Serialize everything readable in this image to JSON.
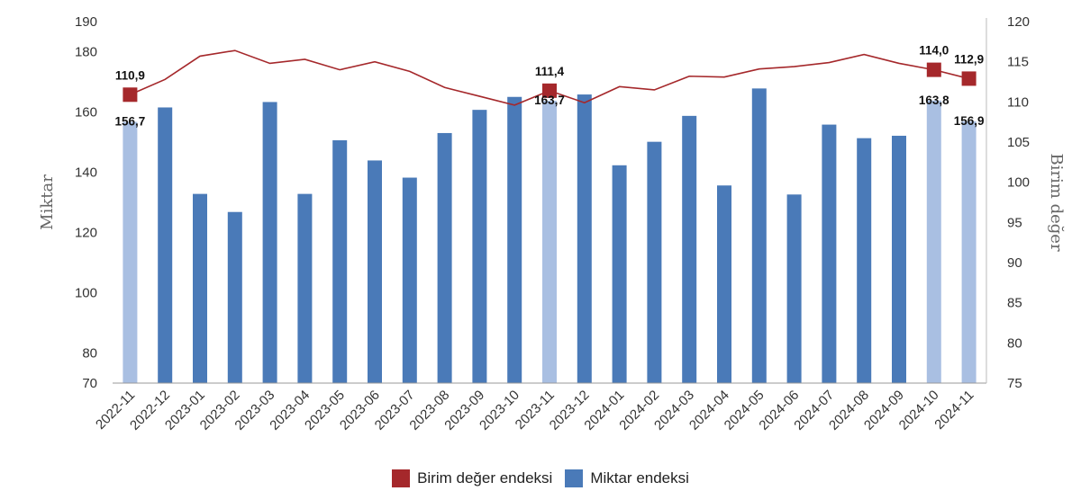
{
  "chart_data": {
    "type": "bar+line",
    "categories": [
      "2022-11",
      "2022-12",
      "2023-01",
      "2023-02",
      "2023-03",
      "2023-04",
      "2023-05",
      "2023-06",
      "2023-07",
      "2023-08",
      "2023-09",
      "2023-10",
      "2023-11",
      "2023-12",
      "2024-01",
      "2024-02",
      "2024-03",
      "2024-04",
      "2024-05",
      "2024-06",
      "2024-07",
      "2024-08",
      "2024-09",
      "2024-10",
      "2024-11"
    ],
    "series": [
      {
        "name": "Miktar endeksi",
        "type": "bar",
        "axis": "left",
        "color": "#4a7ab8",
        "highlight_color": "#a9bfe2",
        "highlight_indices": [
          0,
          12,
          23,
          24
        ],
        "values": [
          156.7,
          161.5,
          132.8,
          126.8,
          163.3,
          132.8,
          150.6,
          143.9,
          138.2,
          153.0,
          160.7,
          165.0,
          163.7,
          165.8,
          142.3,
          150.1,
          158.7,
          135.6,
          167.8,
          132.6,
          155.8,
          151.3,
          152.1,
          163.8,
          156.9
        ]
      },
      {
        "name": "Birim değer endeksi",
        "type": "line",
        "axis": "right",
        "color": "#a5282b",
        "marker_indices": [
          0,
          12,
          23,
          24
        ],
        "values": [
          110.9,
          112.8,
          115.7,
          116.4,
          114.8,
          115.3,
          114.0,
          115.0,
          113.8,
          111.8,
          110.7,
          109.6,
          111.4,
          109.9,
          111.9,
          111.5,
          113.2,
          113.1,
          114.1,
          114.4,
          114.9,
          115.9,
          114.8,
          114.0,
          112.9
        ]
      }
    ],
    "data_labels": {
      "bars": [
        {
          "index": 0,
          "text": "156,7"
        },
        {
          "index": 12,
          "text": "163,7"
        },
        {
          "index": 23,
          "text": "163,8"
        },
        {
          "index": 24,
          "text": "156,9"
        }
      ],
      "line": [
        {
          "index": 0,
          "text": "110,9"
        },
        {
          "index": 12,
          "text": "111,4"
        },
        {
          "index": 23,
          "text": "114,0"
        },
        {
          "index": 24,
          "text": "112,9"
        }
      ]
    },
    "ylabel": "Miktar",
    "y2label": "Birim değer",
    "ylim": [
      70,
      190
    ],
    "y_ticks": [
      70,
      80,
      100,
      120,
      140,
      160,
      180,
      190
    ],
    "y2lim": [
      75,
      120
    ],
    "y2_ticks": [
      75,
      80,
      85,
      90,
      95,
      100,
      105,
      110,
      115,
      120
    ],
    "grid": false,
    "legend_position": "bottom"
  },
  "legend": {
    "line_label": "Birim değer endeksi",
    "bar_label": "Miktar endeksi",
    "line_color": "#a5282b",
    "bar_color": "#4a7ab8"
  }
}
